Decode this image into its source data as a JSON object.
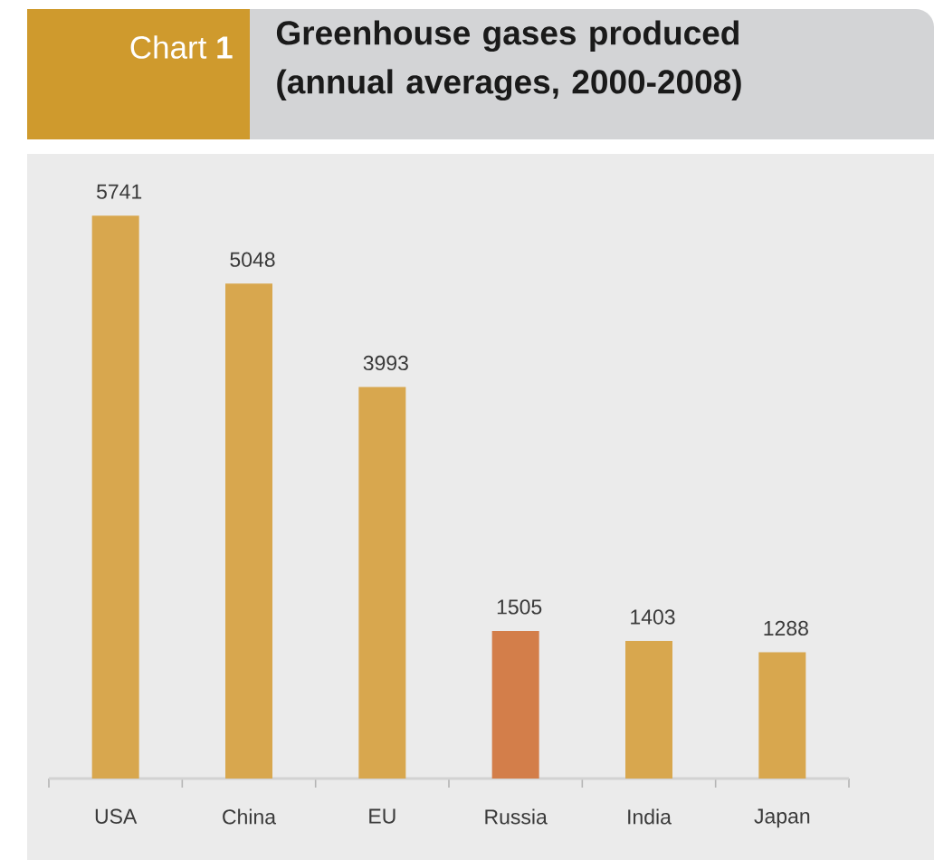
{
  "chart_data": {
    "type": "bar",
    "title": "Greenhouse gases produced (annual averages, 2000-2008)",
    "annotations": [
      "Chart **1**"
    ],
    "categories": [
      "USA",
      "China",
      "EU",
      "Russia",
      "India",
      "Japan"
    ],
    "values": [
      5741,
      5048,
      3993,
      1505,
      1403,
      1288
    ],
    "colors": [
      "#d8a74e",
      "#d8a74e",
      "#d8a74e",
      "#d37e4a",
      "#d8a74e",
      "#d8a74e"
    ],
    "data_labels": true
  }
}
